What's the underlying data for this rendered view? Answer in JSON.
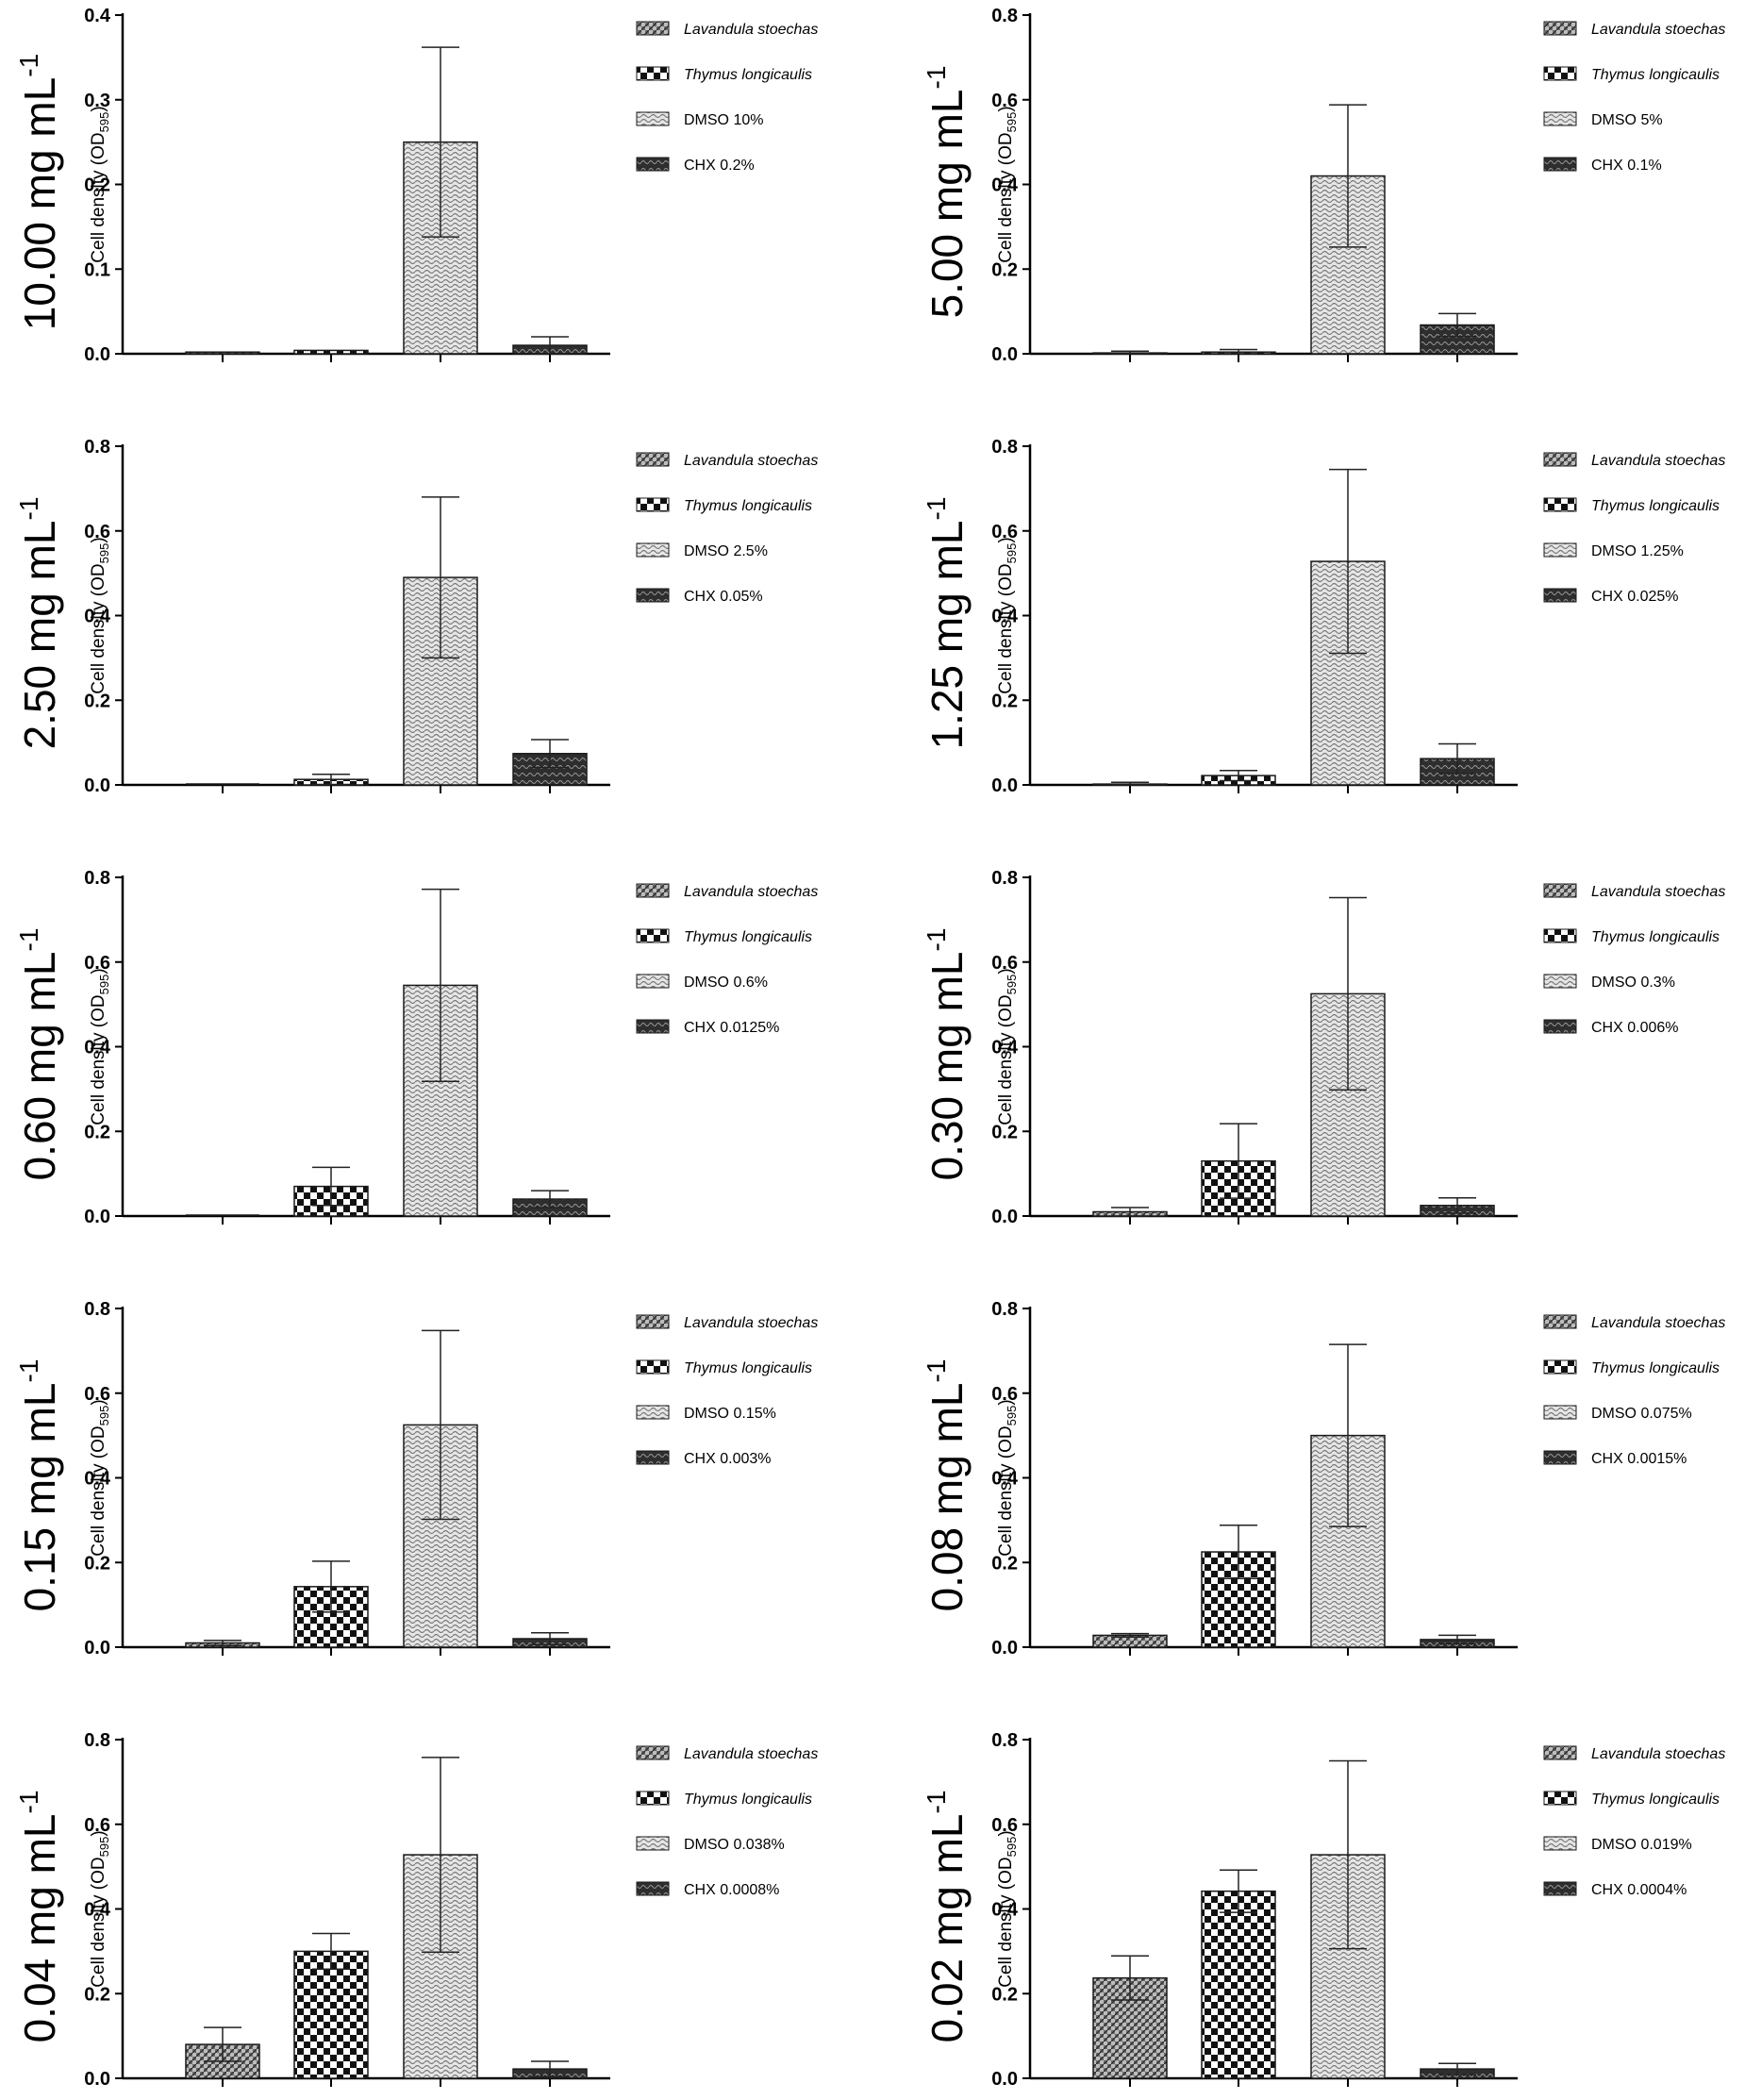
{
  "figure": {
    "ylabel_main": "Cell density (OD",
    "ylabel_sub": "595",
    "ylabel_close": ")",
    "unit_prefix": " mg mL",
    "unit_exp": "-1"
  },
  "colors": {
    "axis": "#000000",
    "bar_stroke": "#1a1a1a",
    "lavandula": "#555555",
    "thymus": "#111111",
    "dmso": "#bdbdbd",
    "chx": "#333333"
  },
  "chart_data": [
    {
      "type": "bar",
      "title": "10.00",
      "ylim": [
        0,
        0.4
      ],
      "ticks": [
        "0.0",
        "0.1",
        "0.2",
        "0.3",
        "0.4"
      ],
      "tick_values": [
        0,
        0.1,
        0.2,
        0.3,
        0.4
      ],
      "series": [
        {
          "name": "Lavandula stoechas",
          "value": 0.002,
          "error": 0
        },
        {
          "name": "Thymus longicaulis",
          "value": 0.004,
          "error": 0
        },
        {
          "name": "DMSO 10%",
          "value": 0.25,
          "error": 0.112
        },
        {
          "name": "CHX 0.2%",
          "value": 0.01,
          "error": 0.01
        }
      ]
    },
    {
      "type": "bar",
      "title": "5.00",
      "ylim": [
        0,
        0.8
      ],
      "ticks": [
        "0.0",
        "0.2",
        "0.4",
        "0.6",
        "0.8"
      ],
      "tick_values": [
        0,
        0.2,
        0.4,
        0.6,
        0.8
      ],
      "series": [
        {
          "name": "Lavandula stoechas",
          "value": 0.002,
          "error": 0.004
        },
        {
          "name": "Thymus longicaulis",
          "value": 0.004,
          "error": 0.006
        },
        {
          "name": "DMSO 5%",
          "value": 0.42,
          "error": 0.168
        },
        {
          "name": "CHX 0.1%",
          "value": 0.068,
          "error": 0.027
        }
      ]
    },
    {
      "type": "bar",
      "title": "2.50",
      "ylim": [
        0,
        0.8
      ],
      "ticks": [
        "0.0",
        "0.2",
        "0.4",
        "0.6",
        "0.8"
      ],
      "tick_values": [
        0,
        0.2,
        0.4,
        0.6,
        0.8
      ],
      "series": [
        {
          "name": "Lavandula stoechas",
          "value": 0.0,
          "error": 0
        },
        {
          "name": "Thymus longicaulis",
          "value": 0.013,
          "error": 0.012
        },
        {
          "name": "DMSO 2.5%",
          "value": 0.49,
          "error": 0.19
        },
        {
          "name": "CHX 0.05%",
          "value": 0.074,
          "error": 0.033
        }
      ]
    },
    {
      "type": "bar",
      "title": "1.25",
      "ylim": [
        0,
        0.8
      ],
      "ticks": [
        "0.0",
        "0.2",
        "0.4",
        "0.6",
        "0.8"
      ],
      "tick_values": [
        0,
        0.2,
        0.4,
        0.6,
        0.8
      ],
      "series": [
        {
          "name": "Lavandula stoechas",
          "value": 0.002,
          "error": 0.004
        },
        {
          "name": "Thymus longicaulis",
          "value": 0.022,
          "error": 0.012
        },
        {
          "name": "DMSO 1.25%",
          "value": 0.528,
          "error": 0.217
        },
        {
          "name": "CHX 0.025%",
          "value": 0.062,
          "error": 0.035
        }
      ]
    },
    {
      "type": "bar",
      "title": "0.60",
      "ylim": [
        0,
        0.8
      ],
      "ticks": [
        "0.0",
        "0.2",
        "0.4",
        "0.6",
        "0.8"
      ],
      "tick_values": [
        0,
        0.2,
        0.4,
        0.6,
        0.8
      ],
      "series": [
        {
          "name": "Lavandula stoechas",
          "value": 0.0,
          "error": 0
        },
        {
          "name": "Thymus longicaulis",
          "value": 0.07,
          "error": 0.045
        },
        {
          "name": "DMSO 0.6%",
          "value": 0.545,
          "error": 0.227
        },
        {
          "name": "CHX 0.0125%",
          "value": 0.04,
          "error": 0.02
        }
      ]
    },
    {
      "type": "bar",
      "title": "0.30",
      "ylim": [
        0,
        0.8
      ],
      "ticks": [
        "0.0",
        "0.2",
        "0.4",
        "0.6",
        "0.8"
      ],
      "tick_values": [
        0,
        0.2,
        0.4,
        0.6,
        0.8
      ],
      "series": [
        {
          "name": "Lavandula stoechas",
          "value": 0.01,
          "error": 0.01
        },
        {
          "name": "Thymus longicaulis",
          "value": 0.13,
          "error": 0.088
        },
        {
          "name": "DMSO 0.3%",
          "value": 0.525,
          "error": 0.227
        },
        {
          "name": "CHX 0.006%",
          "value": 0.025,
          "error": 0.018
        }
      ]
    },
    {
      "type": "bar",
      "title": "0.15",
      "ylim": [
        0,
        0.8
      ],
      "ticks": [
        "0.0",
        "0.2",
        "0.4",
        "0.6",
        "0.8"
      ],
      "tick_values": [
        0,
        0.2,
        0.4,
        0.6,
        0.8
      ],
      "series": [
        {
          "name": "Lavandula stoechas",
          "value": 0.01,
          "error": 0.006
        },
        {
          "name": "Thymus longicaulis",
          "value": 0.143,
          "error": 0.06
        },
        {
          "name": "DMSO 0.15%",
          "value": 0.525,
          "error": 0.223
        },
        {
          "name": "CHX 0.003%",
          "value": 0.02,
          "error": 0.014
        }
      ]
    },
    {
      "type": "bar",
      "title": "0.08",
      "ylim": [
        0,
        0.8
      ],
      "ticks": [
        "0.0",
        "0.2",
        "0.4",
        "0.6",
        "0.8"
      ],
      "tick_values": [
        0,
        0.2,
        0.4,
        0.6,
        0.8
      ],
      "series": [
        {
          "name": "Lavandula stoechas",
          "value": 0.028,
          "error": 0.004
        },
        {
          "name": "Thymus longicaulis",
          "value": 0.225,
          "error": 0.063
        },
        {
          "name": "DMSO 0.075%",
          "value": 0.5,
          "error": 0.215
        },
        {
          "name": "CHX 0.0015%",
          "value": 0.018,
          "error": 0.01
        }
      ]
    },
    {
      "type": "bar",
      "title": "0.04",
      "ylim": [
        0,
        0.8
      ],
      "ticks": [
        "0.0",
        "0.2",
        "0.4",
        "0.6",
        "0.8"
      ],
      "tick_values": [
        0,
        0.2,
        0.4,
        0.6,
        0.8
      ],
      "series": [
        {
          "name": "Lavandula stoechas",
          "value": 0.08,
          "error": 0.04
        },
        {
          "name": "Thymus longicaulis",
          "value": 0.3,
          "error": 0.042
        },
        {
          "name": "DMSO 0.038%",
          "value": 0.528,
          "error": 0.23
        },
        {
          "name": "CHX 0.0008%",
          "value": 0.022,
          "error": 0.018
        }
      ]
    },
    {
      "type": "bar",
      "title": "0.02",
      "ylim": [
        0,
        0.8
      ],
      "ticks": [
        "0.0",
        "0.2",
        "0.4",
        "0.6",
        "0.8"
      ],
      "tick_values": [
        0,
        0.2,
        0.4,
        0.6,
        0.8
      ],
      "series": [
        {
          "name": "Lavandula stoechas",
          "value": 0.237,
          "error": 0.052
        },
        {
          "name": "Thymus longicaulis",
          "value": 0.442,
          "error": 0.05
        },
        {
          "name": "DMSO 0.019%",
          "value": 0.528,
          "error": 0.222
        },
        {
          "name": "CHX 0.0004%",
          "value": 0.022,
          "error": 0.013
        }
      ]
    }
  ]
}
